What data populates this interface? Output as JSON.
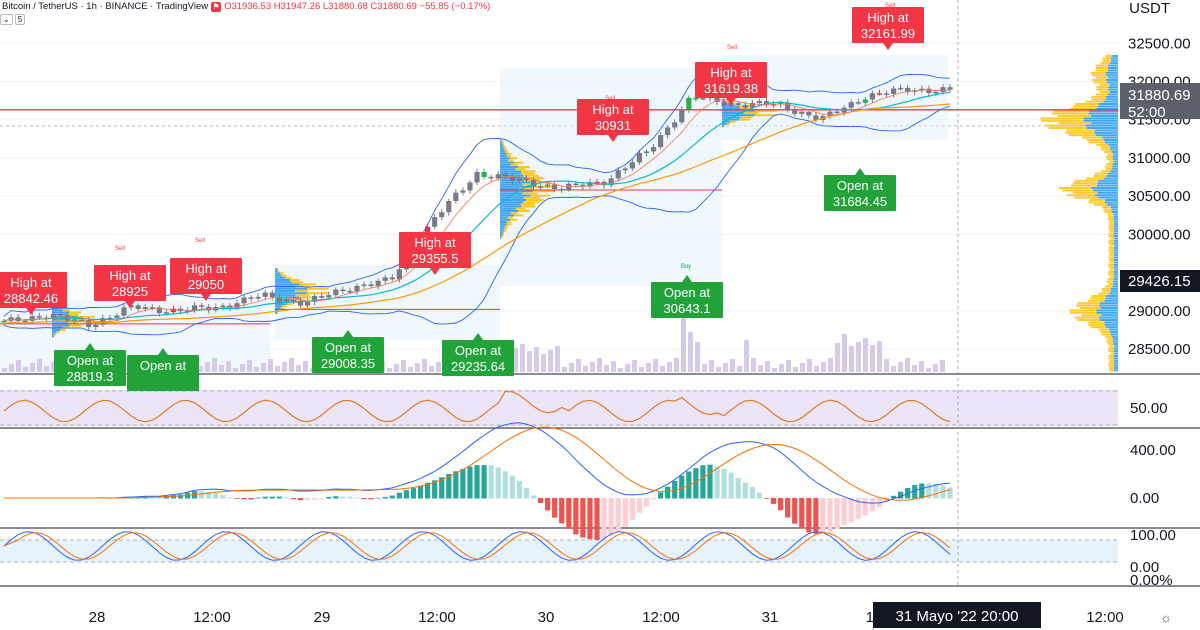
{
  "header": {
    "symbol": "Bitcoin / TetherUS · 1h · BINANCE · TradingView",
    "ohlc": "O31936.53 H31947.26 L31880.68 C31880.69 −55.85 (−0.17%)",
    "interval_badge": "5"
  },
  "price_axis": {
    "currency": "USDT",
    "ticks": [
      "32500.00",
      "32000.00",
      "31500.00",
      "31000.00",
      "30500.00",
      "30000.00",
      "29000.00",
      "28500.00"
    ],
    "current_price": "31880.69",
    "countdown": "52:00",
    "reference_price": "29426.15"
  },
  "time_axis": {
    "ticks": [
      "28",
      "12:00",
      "29",
      "12:00",
      "30",
      "12:00",
      "31",
      "12:",
      "12:00"
    ],
    "crosshair_label": "31 Mayo '22   20:00"
  },
  "rsi_axis": {
    "ticks": [
      "50.00"
    ]
  },
  "macd_axis": {
    "ticks": [
      "400.00",
      "0.00"
    ]
  },
  "stoch_axis": {
    "ticks": [
      "100.00",
      "0.00",
      "0.00%"
    ]
  },
  "colors": {
    "up": "#26a69a",
    "down": "#ef5350",
    "candle_grey": "#787b86",
    "high_label": "#f23645",
    "open_label": "#22a33a",
    "bb": "#2962ff",
    "ema_slow": "#ff9800",
    "ema_mid": "#00bcd4",
    "rsi": "#e07b24",
    "rsi_band": "#dccdf0",
    "vol": "#d1c4e9",
    "vp_up": "#2196f3",
    "vp_down": "#ffc107"
  },
  "chart_data": {
    "type": "candlestick",
    "title": "",
    "x": [
      "28",
      "12:00",
      "29",
      "12:00",
      "30",
      "12:00",
      "31",
      "12:00"
    ],
    "ylim": [
      28200,
      32700
    ],
    "price_path": [
      [
        28800,
        28850
      ],
      [
        28850,
        28950
      ],
      [
        28900,
        28820
      ],
      [
        28850,
        29050
      ],
      [
        28900,
        29000
      ],
      [
        28950,
        29050
      ],
      [
        29000,
        29200
      ],
      [
        29150,
        29100
      ],
      [
        29150,
        29300
      ],
      [
        29250,
        29400
      ],
      [
        29400,
        30200
      ],
      [
        30200,
        30800
      ],
      [
        30800,
        30700
      ],
      [
        30650,
        30600
      ],
      [
        30500,
        30700
      ],
      [
        30700,
        31100
      ],
      [
        31700,
        31800
      ],
      [
        31800,
        31700
      ],
      [
        31600,
        31700
      ],
      [
        31700,
        31500
      ],
      [
        31500,
        31800
      ],
      [
        31800,
        31900
      ],
      [
        31900,
        31880
      ]
    ],
    "annotations": [
      {
        "kind": "high",
        "label": "High at",
        "value": "28842.46"
      },
      {
        "kind": "high",
        "label": "High at",
        "value": "28925"
      },
      {
        "kind": "high",
        "label": "High at",
        "value": "29050"
      },
      {
        "kind": "high",
        "label": "High at",
        "value": "29355.5"
      },
      {
        "kind": "high",
        "label": "High at",
        "value": "30931"
      },
      {
        "kind": "high",
        "label": "High at",
        "value": "31619.38"
      },
      {
        "kind": "high",
        "label": "High at",
        "value": "32161.99"
      },
      {
        "kind": "open",
        "label": "Open at",
        "value": "28819.3"
      },
      {
        "kind": "open",
        "label": "Open at",
        "value": ""
      },
      {
        "kind": "open",
        "label": "Open at",
        "value": "29008.35"
      },
      {
        "kind": "open",
        "label": "Open at",
        "value": "29235.64"
      },
      {
        "kind": "open",
        "label": "Open at",
        "value": "30643.1"
      },
      {
        "kind": "open",
        "label": "Open at",
        "value": "31684.45"
      }
    ],
    "signals": [
      "Sell",
      "Sell",
      "Sell",
      "Sell",
      "Sell",
      "Sell",
      "Buy",
      "Sell"
    ],
    "horizontal_lines": [
      31630,
      30580
    ],
    "rsi_level": 50,
    "macd_range": [
      -120,
      450
    ],
    "stoch_range": [
      0,
      100
    ]
  }
}
